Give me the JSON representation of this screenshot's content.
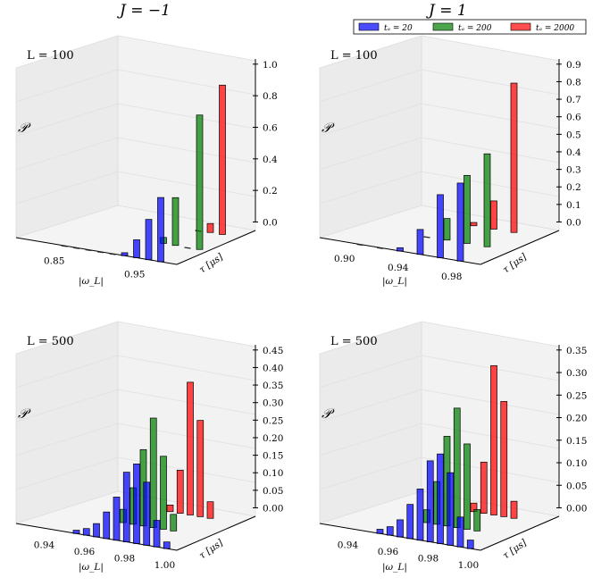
{
  "figure": {
    "col_titles": [
      "J = −1",
      "J = 1"
    ],
    "legend": [
      {
        "label": "tₐ = 20",
        "color": "#0000ff"
      },
      {
        "label": "tₐ = 200",
        "color": "#008000"
      },
      {
        "label": "tₐ = 2000",
        "color": "#ff0000"
      }
    ]
  },
  "chart_data": [
    {
      "type": "bar",
      "title": "L = 100",
      "zlabel": "𝒫",
      "xlabel": "|ω_L|",
      "ylabel": "τ [μs]",
      "xticks": [
        "0.85",
        "0.95"
      ],
      "x_tick_values": [
        0.85,
        0.95
      ],
      "xlim": [
        0.8,
        1.0
      ],
      "zlim": [
        0,
        1.0
      ],
      "zticks": [
        "0.0",
        "0.2",
        "0.4",
        "0.6",
        "0.8",
        "1.0"
      ],
      "series": [
        {
          "name": "tₐ = 20",
          "color": "#0000ff",
          "x": [
            0.86,
            0.875,
            0.89,
            0.905,
            0.92,
            0.935,
            0.95,
            0.965,
            0.98
          ],
          "values": [
            0.0,
            0.0,
            0.0,
            0.0,
            0.0,
            0.02,
            0.12,
            0.27,
            0.43
          ]
        },
        {
          "name": "tₐ = 200",
          "color": "#008000",
          "x": [
            0.95,
            0.965,
            0.98,
            0.995
          ],
          "values": [
            0.04,
            0.32,
            0.0,
            0.9
          ]
        },
        {
          "name": "tₐ = 2000",
          "color": "#ff0000",
          "x": [
            0.96,
            0.975,
            0.99
          ],
          "values": [
            0.0,
            0.06,
            1.0
          ]
        }
      ]
    },
    {
      "type": "bar",
      "title": "L = 100",
      "zlabel": "𝒫",
      "xlabel": "|ω_L|",
      "ylabel": "τ [μs]",
      "xticks": [
        "0.90",
        "0.94",
        "0.98"
      ],
      "x_tick_values": [
        0.9,
        0.94,
        0.98
      ],
      "xlim": [
        0.88,
        1.0
      ],
      "zlim": [
        0,
        0.9
      ],
      "zticks": [
        "0.0",
        "0.1",
        "0.2",
        "0.3",
        "0.4",
        "0.5",
        "0.6",
        "0.7",
        "0.8",
        "0.9"
      ],
      "series": [
        {
          "name": "tₐ = 20",
          "color": "#0000ff",
          "x": [
            0.91,
            0.925,
            0.94,
            0.955,
            0.97,
            0.985
          ],
          "values": [
            0.0,
            0.0,
            0.02,
            0.15,
            0.38,
            0.47
          ]
        },
        {
          "name": "tₐ = 200",
          "color": "#008000",
          "x": [
            0.94,
            0.955,
            0.97,
            0.985
          ],
          "values": [
            0.0,
            0.13,
            0.41,
            0.56
          ]
        },
        {
          "name": "tₐ = 2000",
          "color": "#ff0000",
          "x": [
            0.955,
            0.97,
            0.985
          ],
          "values": [
            0.02,
            0.17,
            0.9
          ]
        }
      ]
    },
    {
      "type": "bar",
      "title": "L = 500",
      "zlabel": "𝒫",
      "xlabel": "|ω_L|",
      "ylabel": "τ [μs]",
      "xticks": [
        "0.94",
        "0.96",
        "0.98",
        "1.00"
      ],
      "x_tick_values": [
        0.94,
        0.96,
        0.98,
        1.0
      ],
      "xlim": [
        0.925,
        1.005
      ],
      "zlim": [
        0,
        0.45
      ],
      "zticks": [
        "0.00",
        "0.05",
        "0.10",
        "0.15",
        "0.20",
        "0.25",
        "0.30",
        "0.35",
        "0.40",
        "0.45"
      ],
      "series": [
        {
          "name": "tₐ = 20",
          "color": "#0000ff",
          "x": [
            0.955,
            0.96,
            0.965,
            0.97,
            0.975,
            0.98,
            0.985,
            0.99,
            0.995,
            1.0
          ],
          "values": [
            0.01,
            0.02,
            0.04,
            0.08,
            0.13,
            0.21,
            0.24,
            0.19,
            0.08,
            0.02
          ]
        },
        {
          "name": "tₐ = 200",
          "color": "#008000",
          "x": [
            0.965,
            0.97,
            0.975,
            0.98,
            0.985,
            0.99
          ],
          "values": [
            0.04,
            0.11,
            0.23,
            0.33,
            0.22,
            0.05
          ]
        },
        {
          "name": "tₐ = 2000",
          "color": "#ff0000",
          "x": [
            0.975,
            0.98,
            0.985,
            0.99,
            0.995
          ],
          "values": [
            0.02,
            0.13,
            0.4,
            0.29,
            0.05
          ]
        }
      ]
    },
    {
      "type": "bar",
      "title": "L = 500",
      "zlabel": "𝒫",
      "xlabel": "|ω_L|",
      "ylabel": "τ [μs]",
      "xticks": [
        "0.94",
        "0.96",
        "0.98",
        "1.00"
      ],
      "x_tick_values": [
        0.94,
        0.96,
        0.98,
        1.0
      ],
      "xlim": [
        0.925,
        1.005
      ],
      "zlim": [
        0,
        0.35
      ],
      "zticks": [
        "0.00",
        "0.05",
        "0.10",
        "0.15",
        "0.20",
        "0.25",
        "0.30",
        "0.35"
      ],
      "series": [
        {
          "name": "tₐ = 20",
          "color": "#0000ff",
          "x": [
            0.955,
            0.96,
            0.965,
            0.97,
            0.975,
            0.98,
            0.985,
            0.99,
            0.995,
            1.0
          ],
          "values": [
            0.01,
            0.02,
            0.04,
            0.08,
            0.12,
            0.19,
            0.21,
            0.17,
            0.07,
            0.02
          ]
        },
        {
          "name": "tₐ = 200",
          "color": "#008000",
          "x": [
            0.965,
            0.97,
            0.975,
            0.98,
            0.985,
            0.99
          ],
          "values": [
            0.03,
            0.1,
            0.21,
            0.28,
            0.2,
            0.05
          ]
        },
        {
          "name": "tₐ = 2000",
          "color": "#ff0000",
          "x": [
            0.975,
            0.98,
            0.985,
            0.99,
            0.995
          ],
          "values": [
            0.02,
            0.12,
            0.35,
            0.27,
            0.04
          ]
        }
      ]
    }
  ]
}
